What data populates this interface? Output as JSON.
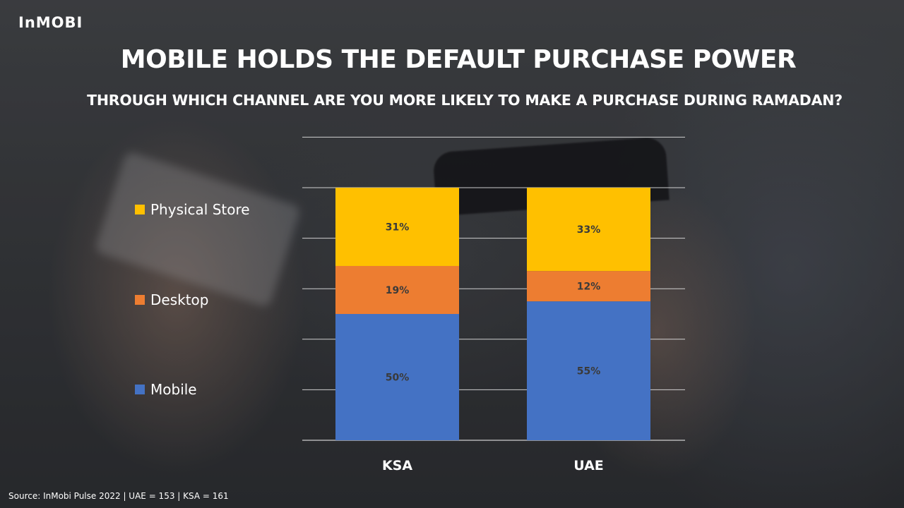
{
  "brand": {
    "logo_text": "InMOBI"
  },
  "source_note": "Source: InMobi Pulse 2022 | UAE = 153 | KSA = 161",
  "chart_data": {
    "type": "bar",
    "stacked": true,
    "title": "MOBILE HOLDS THE DEFAULT PURCHASE POWER",
    "subtitle": "THROUGH WHICH CHANNEL ARE YOU MORE LIKELY TO MAKE A PURCHASE DURING RAMADAN?",
    "categories": [
      "KSA",
      "UAE"
    ],
    "series": [
      {
        "name": "Mobile",
        "values": [
          50,
          55
        ],
        "labels": [
          "50%",
          "55%"
        ],
        "color": "#4472C4"
      },
      {
        "name": "Desktop",
        "values": [
          19,
          12
        ],
        "labels": [
          "19%",
          "12%"
        ],
        "color": "#ED7D31"
      },
      {
        "name": "Physical Store",
        "values": [
          31,
          33
        ],
        "labels": [
          "31%",
          "33%"
        ],
        "color": "#FFC000"
      }
    ],
    "ylim": [
      0,
      100
    ],
    "grid": true,
    "legend_position": "left"
  }
}
